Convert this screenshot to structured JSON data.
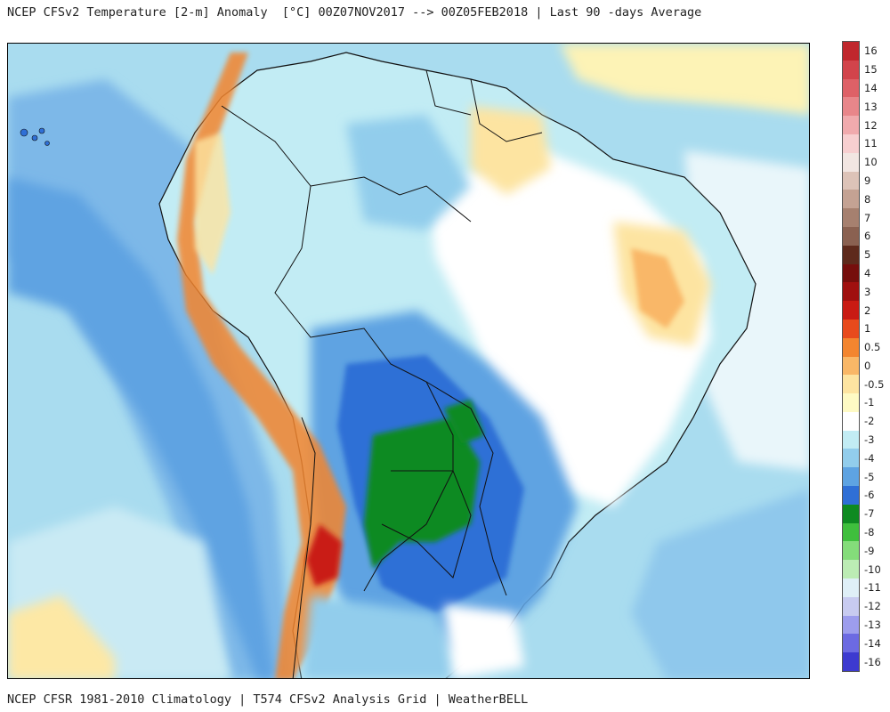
{
  "header": {
    "title": "NCEP CFSv2 Temperature [2-m] Anomaly  [°C] 00Z07NOV2017 --> 00Z05FEB2018 | Last 90 -days Average"
  },
  "footer": {
    "credits": "NCEP CFSR 1981-2010 Climatology | T574 CFSv2 Analysis Grid | WeatherBELL"
  },
  "map": {
    "region": "South America",
    "ocean_color": "#a9dcef",
    "land_neutral_color": "#ffffff"
  },
  "colorbar": {
    "labels": [
      "16",
      "15",
      "14",
      "13",
      "12",
      "11",
      "10",
      "9",
      "8",
      "7",
      "6",
      "5",
      "4",
      "3",
      "2",
      "1",
      "0.5",
      "0",
      "-0.5",
      "-1",
      "-2",
      "-3",
      "-4",
      "-5",
      "-6",
      "-7",
      "-8",
      "-9",
      "-10",
      "-11",
      "-12",
      "-13",
      "-14",
      "-16"
    ],
    "colors": [
      "#c0272d",
      "#d2444b",
      "#de6167",
      "#e8868a",
      "#f0aaad",
      "#f7cfd0",
      "#f2e6e2",
      "#ddc3b8",
      "#c4a293",
      "#a6806f",
      "#8a6151",
      "#5e2a1c",
      "#760e0c",
      "#a0100f",
      "#c91b13",
      "#e84a1c",
      "#f3852f",
      "#f9b767",
      "#fde4a1",
      "#fefac4",
      "#ffffff",
      "#c2ecf4",
      "#92cdec",
      "#5ea3e2",
      "#2f6fd6",
      "#0e8a21",
      "#3fbf3d",
      "#84dc7a",
      "#bcecb4",
      "#dfeff7",
      "#c8cbf0",
      "#9d9ded",
      "#6c6ae2",
      "#3d3ad0"
    ]
  }
}
